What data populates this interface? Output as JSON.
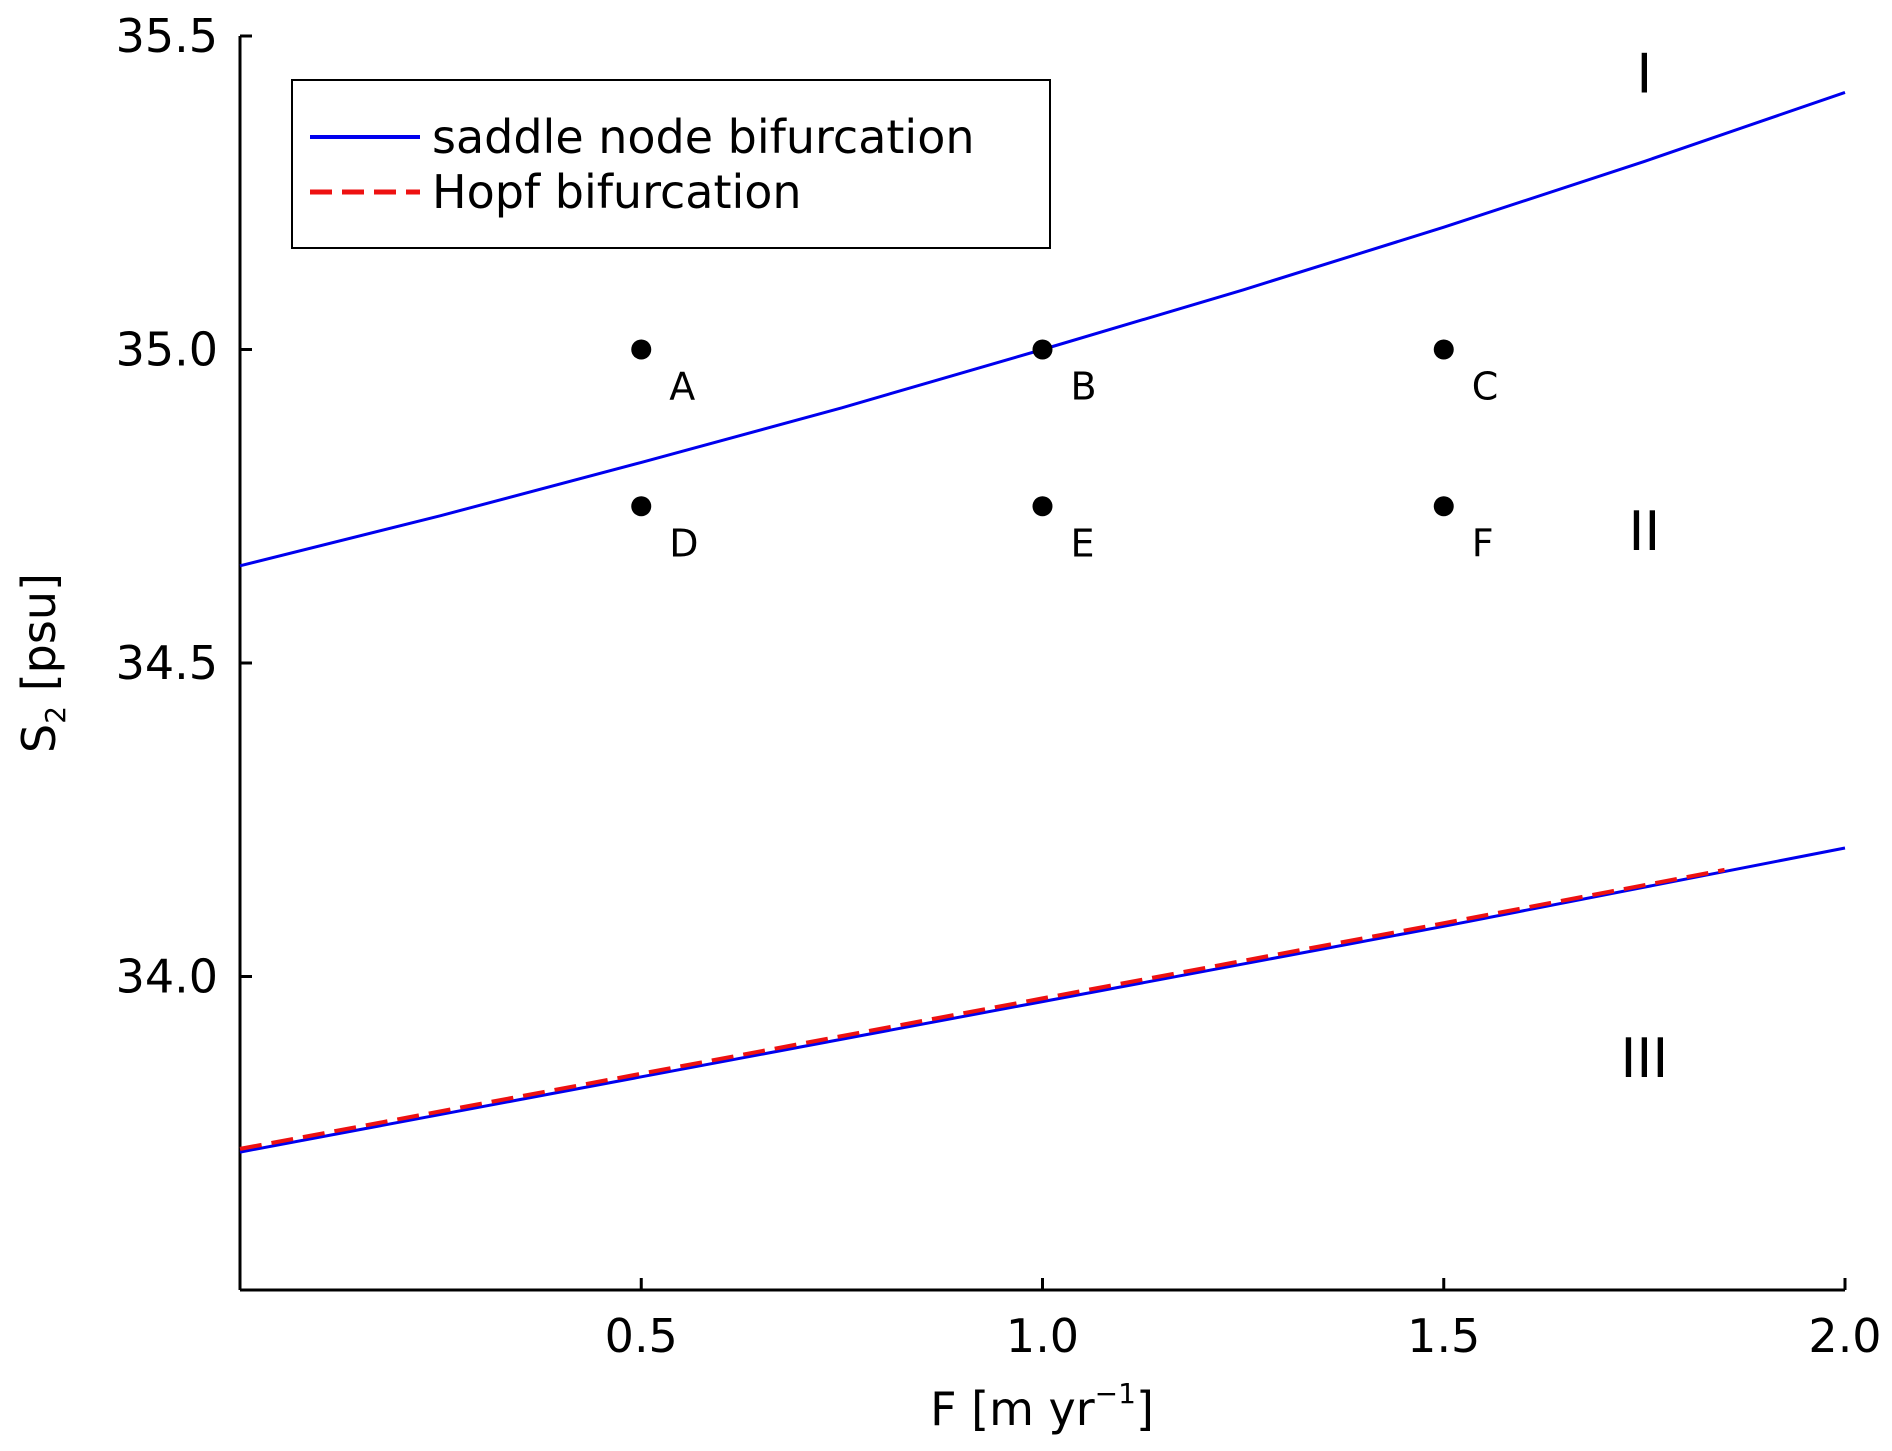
{
  "chart_data": {
    "type": "line",
    "xlabel": "F [m yr",
    "xlabel_sup": "−1",
    "xlabel_suffix": "]",
    "ylabel": "S",
    "ylabel_sub": "2",
    "ylabel_suffix": " [psu]",
    "xlim": [
      0.0,
      2.0
    ],
    "ylim": [
      33.5,
      35.5
    ],
    "xticks": [
      0.5,
      1.0,
      1.5,
      2.0
    ],
    "xtick_labels": [
      "0.5",
      "1.0",
      "1.5",
      "2.0"
    ],
    "yticks": [
      34.0,
      34.5,
      35.0,
      35.5
    ],
    "ytick_labels": [
      "34.0",
      "34.5",
      "35.0",
      "35.5"
    ],
    "grid": false,
    "legend": {
      "position": "top-left"
    },
    "series": [
      {
        "name": "saddle node bifurcation",
        "color": "#0000ee",
        "style": "solid",
        "x": [
          0.0,
          0.25,
          0.5,
          0.75,
          1.0,
          1.25,
          1.5,
          1.75,
          2.0
        ],
        "y": [
          34.655,
          34.735,
          34.82,
          34.907,
          35.0,
          35.095,
          35.195,
          35.3,
          35.41
        ]
      },
      {
        "name": "",
        "color": "#0000ee",
        "style": "solid",
        "x": [
          0.0,
          0.5,
          1.0,
          1.5,
          2.0
        ],
        "y": [
          33.72,
          33.84,
          33.96,
          34.08,
          34.205
        ]
      },
      {
        "name": "Hopf bifurcation",
        "color": "#ee1111",
        "style": "dashed",
        "x": [
          0.0,
          0.5,
          1.0,
          1.5,
          1.85
        ],
        "y": [
          33.725,
          33.845,
          33.965,
          34.085,
          34.17
        ]
      }
    ],
    "points": [
      {
        "label": "A",
        "x": 0.5,
        "y": 35.0
      },
      {
        "label": "B",
        "x": 1.0,
        "y": 35.0
      },
      {
        "label": "C",
        "x": 1.5,
        "y": 35.0
      },
      {
        "label": "D",
        "x": 0.5,
        "y": 34.75
      },
      {
        "label": "E",
        "x": 1.0,
        "y": 34.75
      },
      {
        "label": "F",
        "x": 1.5,
        "y": 34.75
      }
    ],
    "regions": [
      {
        "label": "I",
        "x": 1.75,
        "y": 35.41
      },
      {
        "label": "II",
        "x": 1.75,
        "y": 34.68
      },
      {
        "label": "III",
        "x": 1.75,
        "y": 33.84
      }
    ]
  }
}
